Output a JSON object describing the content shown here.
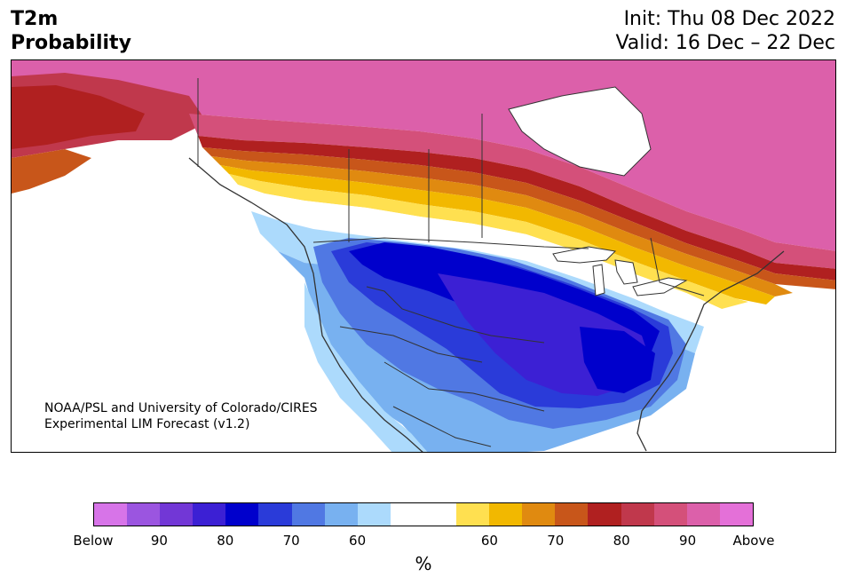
{
  "header": {
    "title_line1": "T2m",
    "title_line2": "Probability",
    "init": "Init: Thu 08 Dec 2022",
    "valid": "Valid: 16 Dec – 22 Dec"
  },
  "map": {
    "credit_line1": "NOAA/PSL and University of Colorado/CIRES",
    "credit_line2": "Experimental LIM Forecast (v1.2)",
    "regions": [
      {
        "name": "far-north-above-90",
        "category": "Above"
      },
      {
        "name": "alaska-above-80",
        "category": "80"
      },
      {
        "name": "canada-warm-bands",
        "category": "60-90"
      },
      {
        "name": "near-normal-band",
        "category": "near-normal"
      },
      {
        "name": "western-us-below-60",
        "category": "60"
      },
      {
        "name": "central-us-below-80",
        "category": "80"
      },
      {
        "name": "southeast-below-90",
        "category": "90"
      }
    ]
  },
  "colorbar": {
    "unit": "%",
    "colors": [
      "#d774e8",
      "#9b55e0",
      "#7237d6",
      "#3c20d4",
      "#0000cc",
      "#2a3bd9",
      "#5078e3",
      "#78b1f0",
      "#acdafc",
      "#ffffff",
      "#ffffff",
      "#ffe050",
      "#f2b800",
      "#e08a10",
      "#c8561a",
      "#b02020",
      "#c0384c",
      "#d4507a",
      "#dc60aa",
      "#e470d8"
    ],
    "tick_labels": [
      {
        "label": "Below",
        "frac": 0.0
      },
      {
        "label": "90",
        "frac": 0.1
      },
      {
        "label": "80",
        "frac": 0.2
      },
      {
        "label": "70",
        "frac": 0.3
      },
      {
        "label": "60",
        "frac": 0.4
      },
      {
        "label": "60",
        "frac": 0.6
      },
      {
        "label": "70",
        "frac": 0.7
      },
      {
        "label": "80",
        "frac": 0.8
      },
      {
        "label": "90",
        "frac": 0.9
      },
      {
        "label": "Above",
        "frac": 1.0
      }
    ]
  }
}
